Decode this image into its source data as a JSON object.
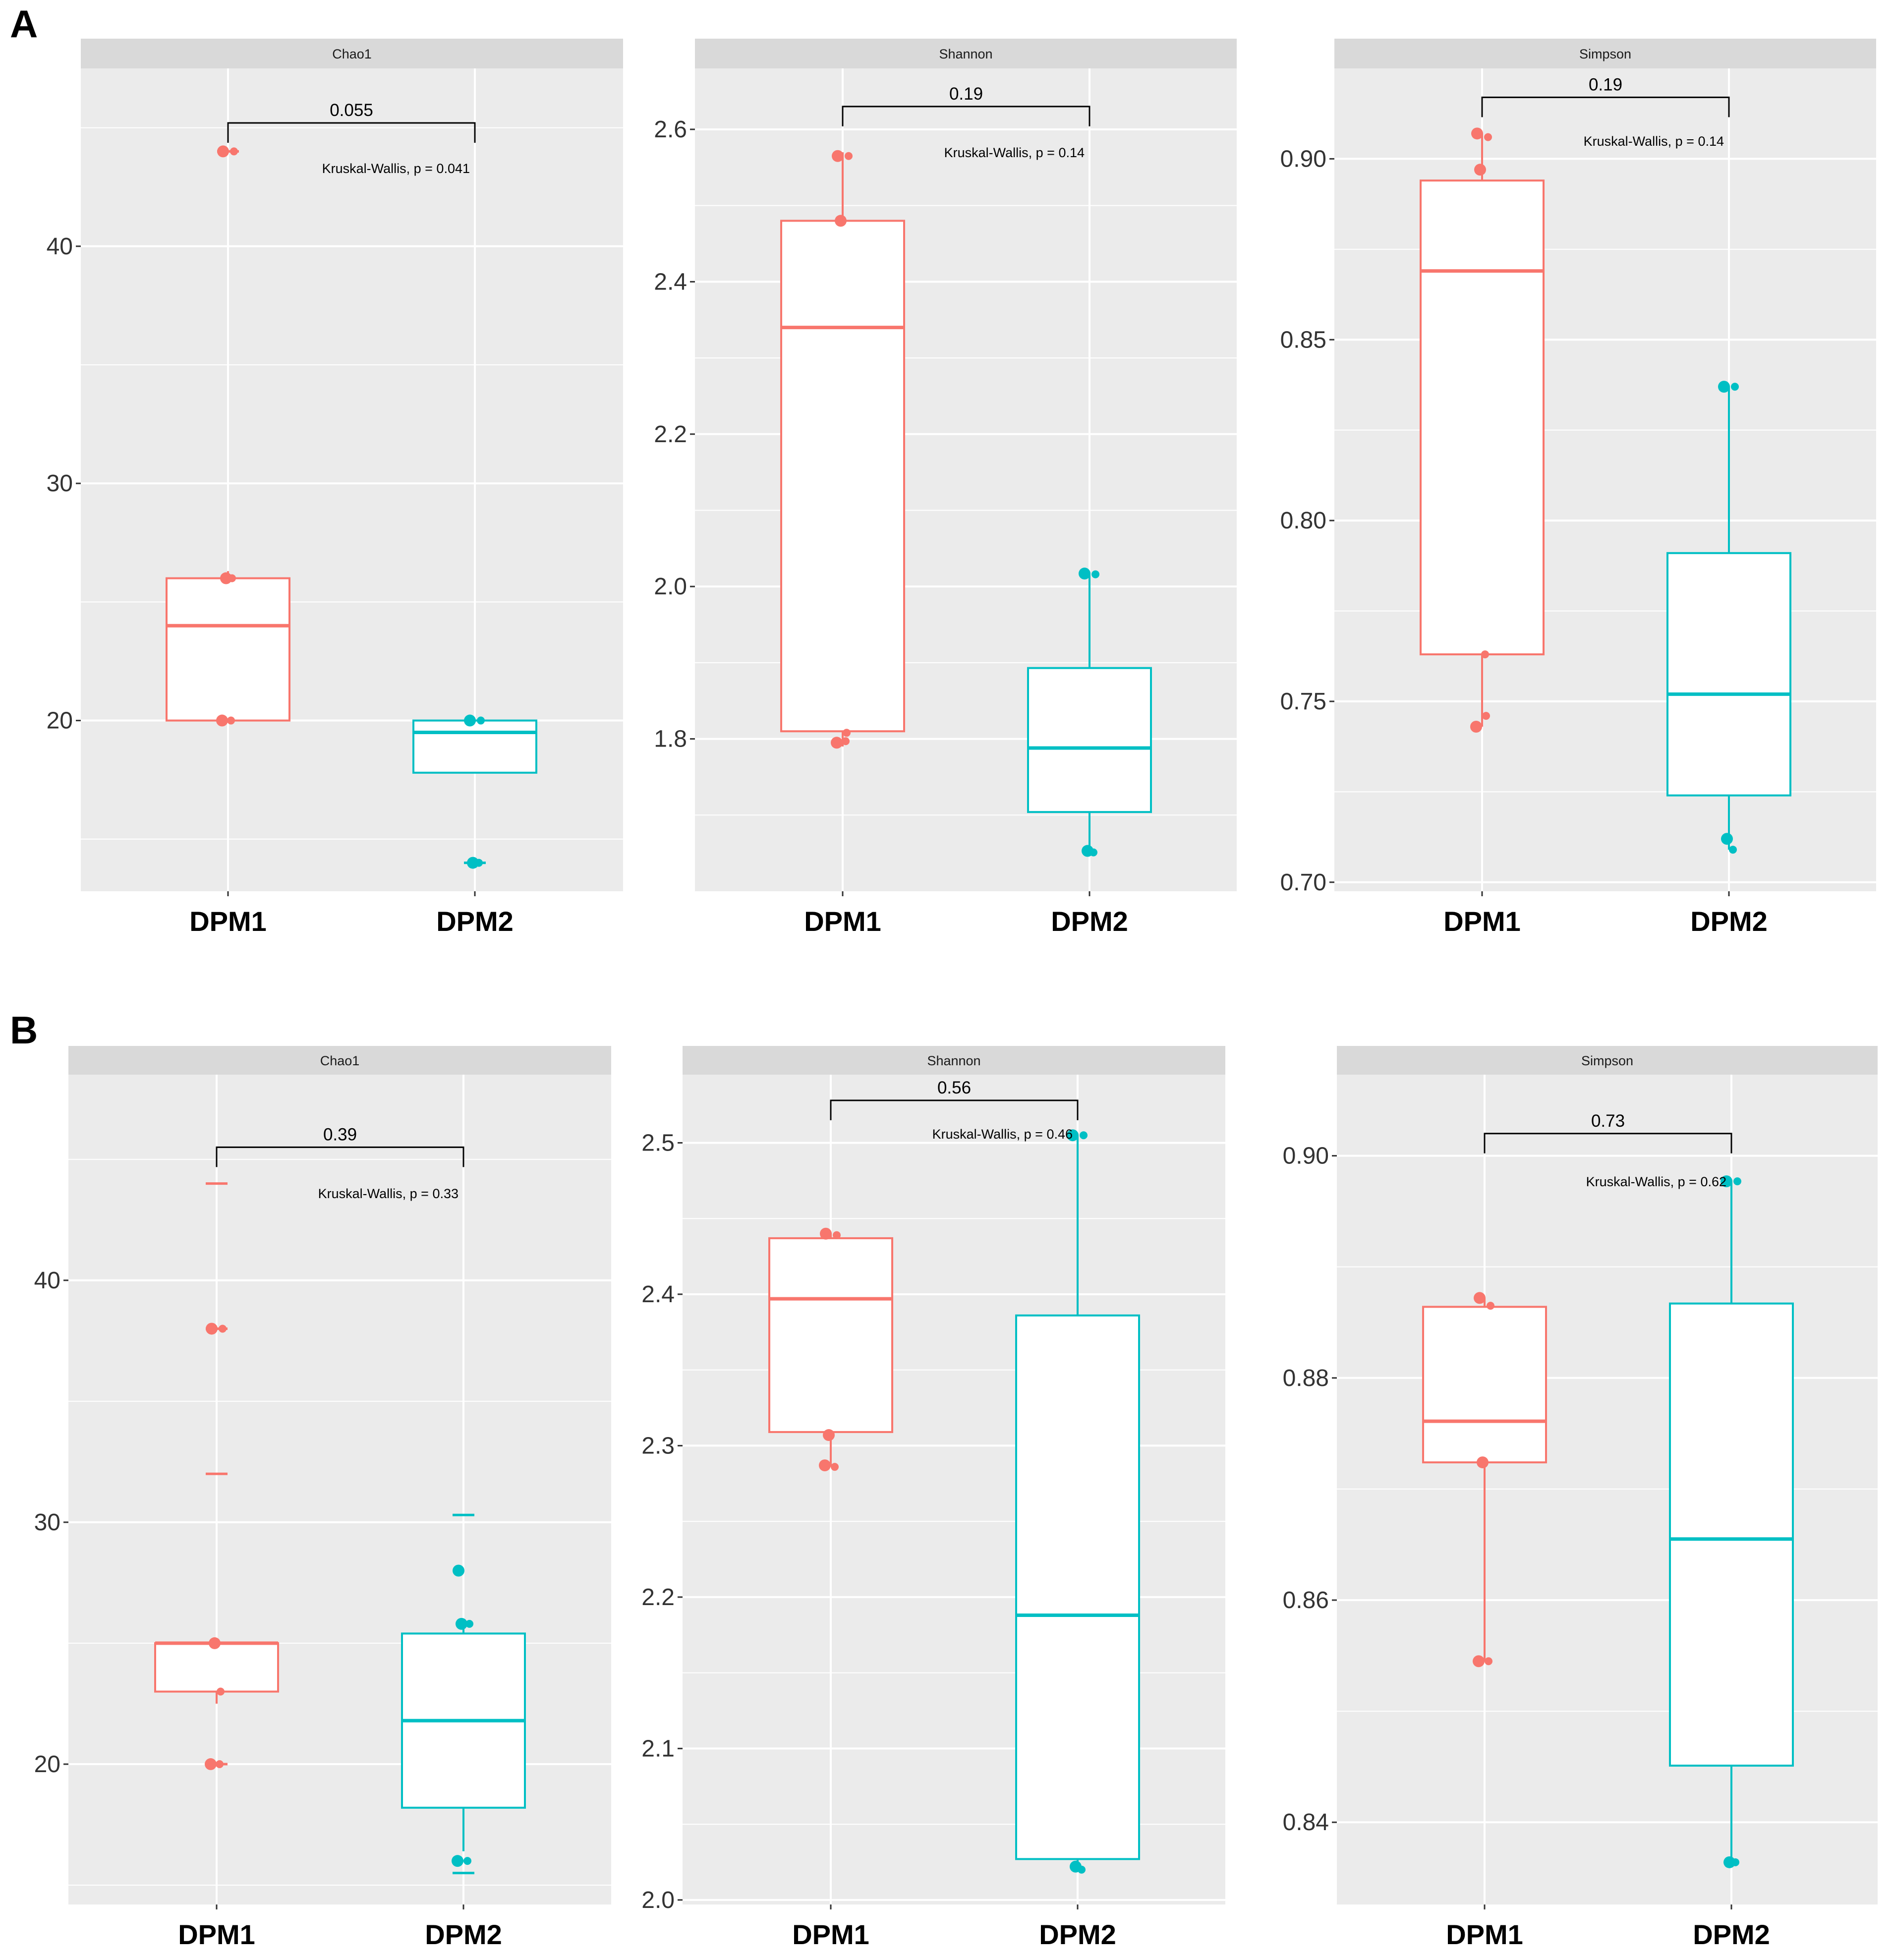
{
  "colors": {
    "DPM1": "#F8766D",
    "DPM2": "#00BFC4",
    "panel_background": "#EBEBEB",
    "grid": "#FFFFFF",
    "strip": "#D9D9D9"
  },
  "panels": [
    {
      "label": "A"
    },
    {
      "label": "B"
    }
  ],
  "chart_data": [
    {
      "type": "box",
      "panel": "A",
      "title": "Chao1",
      "categories": [
        "DPM1",
        "DPM2"
      ],
      "ylim": [
        12.8,
        47.5
      ],
      "yticks": [
        20,
        30,
        40
      ],
      "ytick_labels": [
        "20",
        "30",
        "40"
      ],
      "minor_grid": [
        15,
        25,
        35,
        45
      ],
      "comparison": {
        "label": "0.055",
        "y": 45.2
      },
      "test": {
        "label": "Kruskal-Wallis, p = 0.041",
        "y": 43.3
      },
      "series": [
        {
          "name": "DPM1",
          "whisker_low": 20,
          "q1": 20,
          "median": 24,
          "q3": 26,
          "whisker_high": 26.3,
          "outliers": [
            44
          ],
          "points": [
            44,
            44,
            26,
            26,
            20,
            20
          ]
        },
        {
          "name": "DPM2",
          "whisker_low": 17.8,
          "q1": 17.8,
          "median": 19.5,
          "q3": 20,
          "whisker_high": 20,
          "outliers": [
            14
          ],
          "points": [
            20,
            20,
            14,
            14
          ]
        }
      ]
    },
    {
      "type": "box",
      "panel": "A",
      "title": "Shannon",
      "categories": [
        "DPM1",
        "DPM2"
      ],
      "ylim": [
        1.6,
        2.68
      ],
      "yticks": [
        1.8,
        2.0,
        2.2,
        2.4,
        2.6
      ],
      "ytick_labels": [
        "1.8",
        "2.0",
        "2.2",
        "2.4",
        "2.6"
      ],
      "minor_grid": [
        1.7,
        1.9,
        2.1,
        2.3,
        2.5
      ],
      "comparison": {
        "label": "0.19",
        "y": 2.63
      },
      "test": {
        "label": "Kruskal-Wallis, p = 0.14",
        "y": 2.57
      },
      "series": [
        {
          "name": "DPM1",
          "whisker_low": 1.79,
          "q1": 1.81,
          "median": 2.34,
          "q3": 2.48,
          "whisker_high": 2.57,
          "outliers": [],
          "points": [
            2.565,
            2.565,
            2.48,
            1.808,
            1.795,
            1.797
          ]
        },
        {
          "name": "DPM2",
          "whisker_low": 1.65,
          "q1": 1.704,
          "median": 1.788,
          "q3": 1.893,
          "whisker_high": 2.017,
          "outliers": [],
          "points": [
            2.017,
            2.016,
            1.653,
            1.651
          ]
        }
      ]
    },
    {
      "type": "box",
      "panel": "A",
      "title": "Simpson",
      "categories": [
        "DPM1",
        "DPM2"
      ],
      "ylim": [
        0.6975,
        0.925
      ],
      "yticks": [
        0.7,
        0.75,
        0.8,
        0.85,
        0.9
      ],
      "ytick_labels": [
        "0.70",
        "0.75",
        "0.80",
        "0.85",
        "0.90"
      ],
      "minor_grid": [
        0.725,
        0.775,
        0.825,
        0.875
      ],
      "comparison": {
        "label": "0.19",
        "y": 0.917
      },
      "test": {
        "label": "Kruskal-Wallis, p = 0.14",
        "y": 0.905
      },
      "series": [
        {
          "name": "DPM1",
          "whisker_low": 0.743,
          "q1": 0.763,
          "median": 0.869,
          "q3": 0.894,
          "whisker_high": 0.907,
          "outliers": [],
          "points": [
            0.907,
            0.906,
            0.897,
            0.746,
            0.743,
            0.763
          ]
        },
        {
          "name": "DPM2",
          "whisker_low": 0.709,
          "q1": 0.724,
          "median": 0.752,
          "q3": 0.791,
          "whisker_high": 0.837,
          "outliers": [],
          "points": [
            0.837,
            0.837,
            0.712,
            0.709
          ]
        }
      ]
    },
    {
      "type": "box",
      "panel": "B",
      "title": "Chao1",
      "categories": [
        "DPM1",
        "DPM2"
      ],
      "ylim": [
        14.2,
        48.5
      ],
      "yticks": [
        20,
        30,
        40
      ],
      "ytick_labels": [
        "20",
        "30",
        "40"
      ],
      "minor_grid": [
        15,
        25,
        35,
        45
      ],
      "comparison": {
        "label": "0.39",
        "y": 45.5
      },
      "test": {
        "label": "Kruskal-Wallis, p = 0.33",
        "y": 43.6
      },
      "series": [
        {
          "name": "DPM1",
          "whisker_low": 22.5,
          "q1": 23,
          "median": 25,
          "q3": 25,
          "whisker_high": 25,
          "outliers": [
            44,
            38,
            32,
            20
          ],
          "points": [
            38,
            38,
            25,
            23,
            20,
            20
          ]
        },
        {
          "name": "DPM2",
          "whisker_low": 16.4,
          "q1": 18.2,
          "median": 21.8,
          "q3": 25.4,
          "whisker_high": 25.8,
          "outliers": [
            30.3,
            15.5
          ],
          "points": [
            28,
            25.8,
            25.8,
            16,
            16
          ]
        }
      ]
    },
    {
      "type": "box",
      "panel": "B",
      "title": "Shannon",
      "categories": [
        "DPM1",
        "DPM2"
      ],
      "ylim": [
        1.997,
        2.545
      ],
      "yticks": [
        2.0,
        2.1,
        2.2,
        2.3,
        2.4,
        2.5
      ],
      "ytick_labels": [
        "2.0",
        "2.1",
        "2.2",
        "2.3",
        "2.4",
        "2.5"
      ],
      "minor_grid": [
        2.05,
        2.15,
        2.25,
        2.35,
        2.45
      ],
      "comparison": {
        "label": "0.56",
        "y": 2.528
      },
      "test": {
        "label": "Kruskal-Wallis, p = 0.46",
        "y": 2.506
      },
      "series": [
        {
          "name": "DPM1",
          "whisker_low": 2.286,
          "q1": 2.309,
          "median": 2.397,
          "q3": 2.437,
          "whisker_high": 2.44,
          "outliers": [],
          "points": [
            2.44,
            2.439,
            2.307,
            2.286,
            2.287
          ]
        },
        {
          "name": "DPM2",
          "whisker_low": 2.02,
          "q1": 2.027,
          "median": 2.188,
          "q3": 2.386,
          "whisker_high": 2.505,
          "outliers": [],
          "points": [
            2.505,
            2.505,
            2.022,
            2.02
          ]
        }
      ]
    },
    {
      "type": "box",
      "panel": "B",
      "title": "Simpson",
      "categories": [
        "DPM1",
        "DPM2"
      ],
      "ylim": [
        0.8326,
        0.9073
      ],
      "yticks": [
        0.84,
        0.86,
        0.88,
        0.9
      ],
      "ytick_labels": [
        "0.84",
        "0.86",
        "0.88",
        "0.90"
      ],
      "minor_grid": [
        0.83,
        0.85,
        0.87,
        0.89
      ],
      "comparison": {
        "label": "0.73",
        "y": 0.902
      },
      "test": {
        "label": "Kruskal-Wallis, p = 0.62",
        "y": 0.8977
      },
      "series": [
        {
          "name": "DPM1",
          "whisker_low": 0.8545,
          "q1": 0.8724,
          "median": 0.8761,
          "q3": 0.8864,
          "whisker_high": 0.8872,
          "outliers": [],
          "points": [
            0.8872,
            0.8865,
            0.8724,
            0.8545,
            0.8545
          ]
        },
        {
          "name": "DPM2",
          "whisker_low": 0.8364,
          "q1": 0.8451,
          "median": 0.8655,
          "q3": 0.8867,
          "whisker_high": 0.8977,
          "outliers": [],
          "points": [
            0.8977,
            0.8977,
            0.8364,
            0.8364
          ]
        }
      ]
    }
  ]
}
